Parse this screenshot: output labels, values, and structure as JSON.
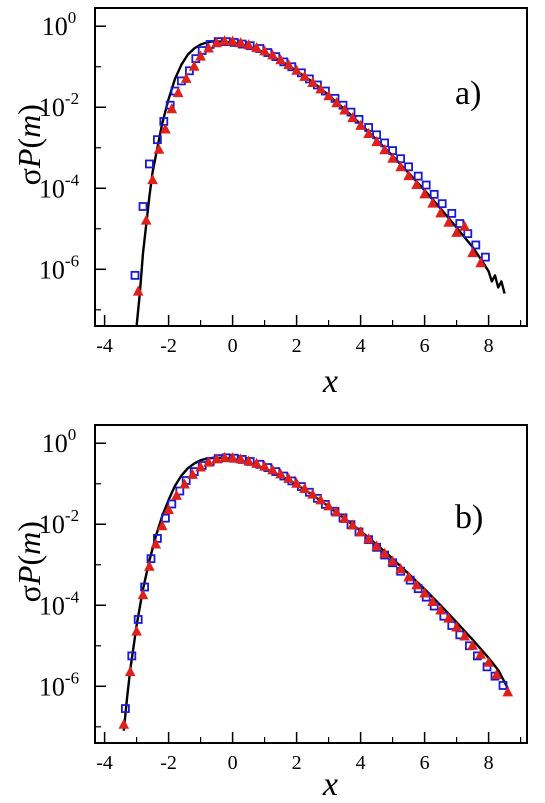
{
  "chart_data": [
    {
      "type": "line",
      "panel_label": "a)",
      "xlabel": "x",
      "ylabel_prefix": "σ",
      "ylabel_P": "P",
      "ylabel_m": "m",
      "y_scale": "log",
      "xlim": [
        -4.3,
        9.2
      ],
      "ylim_log10": [
        -7.4,
        0.45
      ],
      "x_ticks": [
        -4,
        -2,
        0,
        2,
        4,
        6,
        8
      ],
      "x_tick_labels": [
        "-4",
        "-2",
        "0",
        "2",
        "4",
        "6",
        "8"
      ],
      "y_ticks_log10": [
        0,
        -2,
        -4,
        -6
      ],
      "y_tick_labels": [
        {
          "base": "10",
          "exp": "0"
        },
        {
          "base": "10",
          "exp": "-2"
        },
        {
          "base": "10",
          "exp": "-4"
        },
        {
          "base": "10",
          "exp": "-6"
        }
      ],
      "colors": {
        "curve": "#000000",
        "squares": "#1a1ad6",
        "triangles": "#e0201b",
        "axes": "#000000"
      },
      "series": [
        {
          "marker": "line",
          "x": [
            -3.0,
            -2.9,
            -2.8,
            -2.7,
            -2.6,
            -2.5,
            -2.4,
            -2.2,
            -2.0,
            -1.8,
            -1.6,
            -1.4,
            -1.2,
            -1.0,
            -0.8,
            -0.6,
            -0.4,
            -0.2,
            0.0,
            0.2,
            0.5,
            1.0,
            1.5,
            2.0,
            2.5,
            3.0,
            3.5,
            4.0,
            4.5,
            5.0,
            5.5,
            6.0,
            6.5,
            7.0,
            7.5,
            7.8,
            8.0,
            8.1,
            8.2,
            8.3,
            8.4,
            8.5
          ],
          "y_log10": [
            -7.4,
            -6.6,
            -5.6,
            -4.9,
            -4.2,
            -3.6,
            -3.2,
            -2.4,
            -1.8,
            -1.3,
            -0.95,
            -0.7,
            -0.55,
            -0.45,
            -0.4,
            -0.37,
            -0.38,
            -0.39,
            -0.41,
            -0.44,
            -0.5,
            -0.65,
            -0.85,
            -1.1,
            -1.38,
            -1.7,
            -2.05,
            -2.42,
            -2.8,
            -3.2,
            -3.62,
            -4.05,
            -4.5,
            -4.97,
            -5.45,
            -5.8,
            -6.05,
            -6.3,
            -6.15,
            -6.45,
            -6.3,
            -6.6
          ]
        },
        {
          "marker": "square",
          "x": [
            -3.05,
            -2.8,
            -2.6,
            -2.35,
            -2.15,
            -1.95,
            -1.8,
            -1.6,
            -1.35,
            -1.15,
            -0.95,
            -0.7,
            -0.45,
            -0.2,
            0.05,
            0.3,
            0.55,
            0.85,
            1.1,
            1.35,
            1.6,
            1.85,
            2.15,
            2.4,
            2.65,
            2.9,
            3.2,
            3.45,
            3.7,
            3.95,
            4.25,
            4.5,
            4.75,
            5.0,
            5.25,
            5.5,
            5.8,
            6.05,
            6.3,
            6.55,
            6.85,
            7.1,
            7.35,
            7.6,
            7.9
          ],
          "y_log10": [
            -6.15,
            -4.45,
            -3.4,
            -2.8,
            -2.35,
            -1.95,
            -1.6,
            -1.35,
            -1.1,
            -0.8,
            -0.6,
            -0.45,
            -0.38,
            -0.38,
            -0.4,
            -0.44,
            -0.48,
            -0.55,
            -0.65,
            -0.75,
            -0.88,
            -1.0,
            -1.15,
            -1.3,
            -1.45,
            -1.6,
            -1.78,
            -1.95,
            -2.12,
            -2.3,
            -2.5,
            -2.68,
            -2.88,
            -3.07,
            -3.27,
            -3.47,
            -3.7,
            -3.92,
            -4.15,
            -4.38,
            -4.62,
            -4.87,
            -5.12,
            -5.4,
            -5.7
          ]
        },
        {
          "marker": "triangle",
          "x": [
            -2.95,
            -2.7,
            -2.5,
            -2.3,
            -2.1,
            -1.9,
            -1.7,
            -1.45,
            -1.2,
            -1.0,
            -0.75,
            -0.5,
            -0.25,
            0.0,
            0.25,
            0.5,
            0.75,
            1.0,
            1.25,
            1.5,
            1.75,
            2.0,
            2.25,
            2.5,
            2.75,
            3.0,
            3.25,
            3.5,
            3.75,
            4.0,
            4.25,
            4.5,
            4.75,
            5.0,
            5.25,
            5.5,
            5.75,
            6.0,
            6.25,
            6.5,
            6.75,
            7.0,
            7.25,
            7.5,
            7.75
          ],
          "y_log10": [
            -6.55,
            -4.8,
            -3.8,
            -3.05,
            -2.55,
            -2.05,
            -1.65,
            -1.3,
            -1.0,
            -0.75,
            -0.55,
            -0.42,
            -0.37,
            -0.38,
            -0.42,
            -0.47,
            -0.54,
            -0.62,
            -0.72,
            -0.84,
            -0.96,
            -1.1,
            -1.25,
            -1.4,
            -1.56,
            -1.73,
            -1.9,
            -2.08,
            -2.27,
            -2.46,
            -2.66,
            -2.86,
            -3.06,
            -3.27,
            -3.48,
            -3.7,
            -3.92,
            -4.15,
            -4.38,
            -4.62,
            -4.85,
            -5.1,
            -4.95,
            -5.6,
            -5.85
          ]
        }
      ]
    },
    {
      "type": "line",
      "panel_label": "b)",
      "xlabel": "x",
      "ylabel_prefix": "σ",
      "ylabel_P": "P",
      "ylabel_m": "m",
      "y_scale": "log",
      "xlim": [
        -4.3,
        9.2
      ],
      "ylim_log10": [
        -7.4,
        0.45
      ],
      "x_ticks": [
        -4,
        -2,
        0,
        2,
        4,
        6,
        8
      ],
      "x_tick_labels": [
        "-4",
        "-2",
        "0",
        "2",
        "4",
        "6",
        "8"
      ],
      "y_ticks_log10": [
        0,
        -2,
        -4,
        -6
      ],
      "y_tick_labels": [
        {
          "base": "10",
          "exp": "0"
        },
        {
          "base": "10",
          "exp": "-2"
        },
        {
          "base": "10",
          "exp": "-4"
        },
        {
          "base": "10",
          "exp": "-6"
        }
      ],
      "colors": {
        "curve": "#000000",
        "squares": "#1a1ad6",
        "triangles": "#e0201b",
        "axes": "#000000"
      },
      "series": [
        {
          "marker": "line",
          "x": [
            -3.4,
            -3.3,
            -3.2,
            -3.0,
            -2.8,
            -2.6,
            -2.4,
            -2.2,
            -2.0,
            -1.8,
            -1.6,
            -1.4,
            -1.2,
            -1.0,
            -0.8,
            -0.6,
            -0.4,
            -0.2,
            0.0,
            0.2,
            0.5,
            1.0,
            1.5,
            2.0,
            2.5,
            3.0,
            3.5,
            4.0,
            4.5,
            5.0,
            5.5,
            6.0,
            6.5,
            7.0,
            7.5,
            8.0,
            8.3,
            8.6
          ],
          "y_log10": [
            -7.1,
            -6.3,
            -5.6,
            -4.5,
            -3.6,
            -2.9,
            -2.3,
            -1.8,
            -1.4,
            -1.05,
            -0.8,
            -0.62,
            -0.5,
            -0.42,
            -0.38,
            -0.36,
            -0.36,
            -0.37,
            -0.39,
            -0.42,
            -0.48,
            -0.62,
            -0.8,
            -1.02,
            -1.28,
            -1.56,
            -1.86,
            -2.17,
            -2.5,
            -2.85,
            -3.22,
            -3.6,
            -4.0,
            -4.42,
            -4.85,
            -5.3,
            -5.6,
            -6.05
          ]
        },
        {
          "marker": "square",
          "x": [
            -3.35,
            -3.15,
            -2.95,
            -2.75,
            -2.55,
            -2.35,
            -2.1,
            -1.9,
            -1.65,
            -1.45,
            -1.2,
            -0.95,
            -0.7,
            -0.45,
            -0.2,
            0.05,
            0.3,
            0.55,
            0.85,
            1.1,
            1.35,
            1.6,
            1.85,
            2.15,
            2.4,
            2.65,
            2.9,
            3.2,
            3.45,
            3.7,
            3.95,
            4.25,
            4.5,
            4.75,
            5.0,
            5.25,
            5.55,
            5.8,
            6.05,
            6.3,
            6.6,
            6.85,
            7.1,
            7.4,
            7.65,
            7.95,
            8.2,
            8.45
          ],
          "y_log10": [
            -6.55,
            -5.25,
            -4.35,
            -3.55,
            -2.85,
            -2.35,
            -1.85,
            -1.5,
            -1.18,
            -0.92,
            -0.7,
            -0.55,
            -0.45,
            -0.38,
            -0.36,
            -0.37,
            -0.4,
            -0.45,
            -0.52,
            -0.6,
            -0.7,
            -0.81,
            -0.93,
            -1.07,
            -1.21,
            -1.36,
            -1.51,
            -1.68,
            -1.84,
            -2.01,
            -2.19,
            -2.38,
            -2.57,
            -2.76,
            -2.95,
            -3.16,
            -3.38,
            -3.59,
            -3.8,
            -4.02,
            -4.27,
            -4.5,
            -4.73,
            -5.0,
            -5.25,
            -5.52,
            -5.75,
            -5.98
          ]
        },
        {
          "marker": "triangle",
          "x": [
            -3.4,
            -3.2,
            -3.0,
            -2.8,
            -2.6,
            -2.4,
            -2.2,
            -2.0,
            -1.75,
            -1.5,
            -1.25,
            -1.0,
            -0.75,
            -0.5,
            -0.25,
            0.0,
            0.25,
            0.5,
            0.75,
            1.0,
            1.25,
            1.5,
            1.75,
            2.0,
            2.25,
            2.5,
            2.75,
            3.0,
            3.25,
            3.5,
            3.75,
            4.0,
            4.25,
            4.5,
            4.75,
            5.0,
            5.25,
            5.5,
            5.75,
            6.0,
            6.25,
            6.5,
            6.75,
            7.0,
            7.25,
            7.5,
            7.75,
            8.0,
            8.25,
            8.6
          ],
          "y_log10": [
            -6.95,
            -5.65,
            -4.65,
            -3.75,
            -3.05,
            -2.5,
            -2.05,
            -1.65,
            -1.3,
            -1.02,
            -0.78,
            -0.6,
            -0.48,
            -0.4,
            -0.36,
            -0.37,
            -0.4,
            -0.45,
            -0.51,
            -0.58,
            -0.67,
            -0.77,
            -0.88,
            -1.0,
            -1.13,
            -1.27,
            -1.41,
            -1.56,
            -1.71,
            -1.87,
            -2.03,
            -2.2,
            -2.37,
            -2.55,
            -2.73,
            -2.92,
            -3.11,
            -3.31,
            -3.51,
            -3.71,
            -3.92,
            -4.13,
            -4.33,
            -4.55,
            -4.77,
            -5.0,
            -5.22,
            -5.42,
            -5.72,
            -6.15
          ]
        }
      ]
    }
  ]
}
